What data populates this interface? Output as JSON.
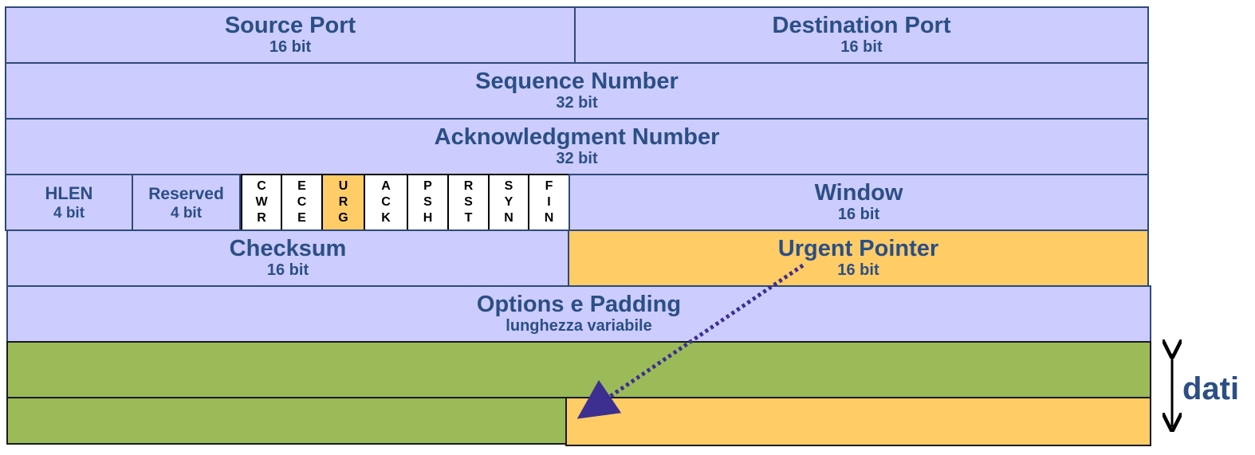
{
  "header": {
    "source_port": {
      "title": "Source Port",
      "size": "16 bit"
    },
    "destination_port": {
      "title": "Destination Port",
      "size": "16 bit"
    },
    "sequence_number": {
      "title": "Sequence Number",
      "size": "32 bit"
    },
    "ack_number": {
      "title": "Acknowledgment Number",
      "size": "32 bit"
    },
    "hlen": {
      "title": "HLEN",
      "size": "4 bit"
    },
    "reserved": {
      "title": "Reserved",
      "size": "4 bit"
    },
    "flags": [
      {
        "letters": [
          "C",
          "W",
          "R"
        ],
        "highlighted": false
      },
      {
        "letters": [
          "E",
          "C",
          "E"
        ],
        "highlighted": false
      },
      {
        "letters": [
          "U",
          "R",
          "G"
        ],
        "highlighted": true
      },
      {
        "letters": [
          "A",
          "C",
          "K"
        ],
        "highlighted": false
      },
      {
        "letters": [
          "P",
          "S",
          "H"
        ],
        "highlighted": false
      },
      {
        "letters": [
          "R",
          "S",
          "T"
        ],
        "highlighted": false
      },
      {
        "letters": [
          "S",
          "Y",
          "N"
        ],
        "highlighted": false
      },
      {
        "letters": [
          "F",
          "I",
          "N"
        ],
        "highlighted": false
      }
    ],
    "window": {
      "title": "Window",
      "size": "16 bit"
    },
    "checksum": {
      "title": "Checksum",
      "size": "16 bit"
    },
    "urgent_pointer": {
      "title": "Urgent Pointer",
      "size": "16 bit"
    },
    "options": {
      "title": "Options e Padding",
      "size": "lunghezza variabile"
    }
  },
  "data_label": "dati",
  "colors": {
    "header_fill": "#ccccff",
    "urgent_fill": "#ffcc66",
    "data_fill": "#9bbb59",
    "text": "#2b4f84",
    "arrow": "#3d2f8f"
  }
}
